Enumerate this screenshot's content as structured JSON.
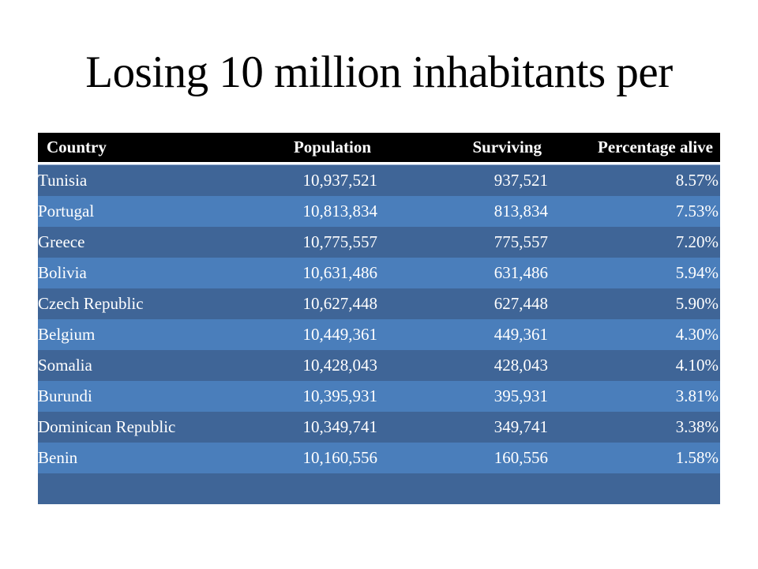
{
  "slide": {
    "title": "Losing 10 million inhabitants per"
  },
  "table": {
    "headers": [
      "Country",
      "Population",
      "Surviving",
      "Percentage alive"
    ],
    "rows": [
      {
        "country": "Tunisia",
        "population": "10,937,521",
        "surviving": "937,521",
        "percentage": "8.57%"
      },
      {
        "country": "Portugal",
        "population": "10,813,834",
        "surviving": "813,834",
        "percentage": "7.53%"
      },
      {
        "country": "Greece",
        "population": "10,775,557",
        "surviving": "775,557",
        "percentage": "7.20%"
      },
      {
        "country": "Bolivia",
        "population": "10,631,486",
        "surviving": "631,486",
        "percentage": "5.94%"
      },
      {
        "country": "Czech Republic",
        "population": "10,627,448",
        "surviving": "627,448",
        "percentage": "5.90%"
      },
      {
        "country": "Belgium",
        "population": "10,449,361",
        "surviving": "449,361",
        "percentage": "4.30%"
      },
      {
        "country": "Somalia",
        "population": "10,428,043",
        "surviving": "428,043",
        "percentage": "4.10%"
      },
      {
        "country": "Burundi",
        "population": "10,395,931",
        "surviving": "395,931",
        "percentage": "3.81%"
      },
      {
        "country": "Dominican Republic",
        "population": "10,349,741",
        "surviving": "349,741",
        "percentage": "3.38%"
      },
      {
        "country": "Benin",
        "population": "10,160,556",
        "surviving": "160,556",
        "percentage": "1.58%"
      },
      {
        "country": "",
        "population": "",
        "surviving": "",
        "percentage": ""
      }
    ]
  },
  "colors": {
    "header_bg": "#000000",
    "row_dark": "#3f6597",
    "row_light": "#4a7ebb",
    "text": "#ffffff"
  }
}
